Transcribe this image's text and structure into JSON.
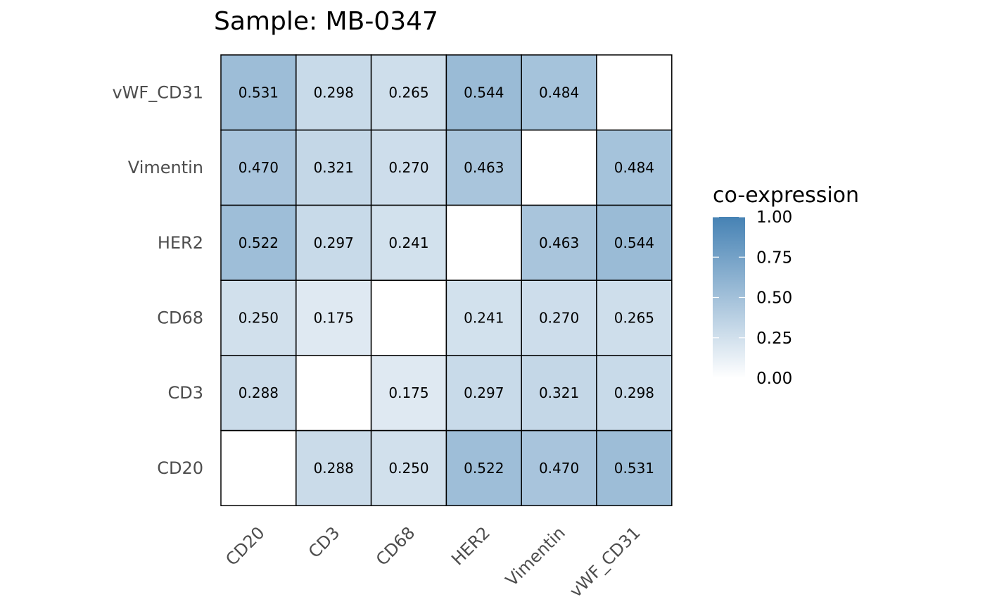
{
  "chart_data": {
    "type": "heatmap",
    "title": "Sample: MB-0347",
    "x_categories": [
      "CD20",
      "CD3",
      "CD68",
      "HER2",
      "Vimentin",
      "vWF_CD31"
    ],
    "y_categories": [
      "CD20",
      "CD3",
      "CD68",
      "HER2",
      "Vimentin",
      "vWF_CD31"
    ],
    "values": [
      [
        null,
        0.288,
        0.25,
        0.522,
        0.47,
        0.531
      ],
      [
        0.288,
        null,
        0.175,
        0.297,
        0.321,
        0.298
      ],
      [
        0.25,
        0.175,
        null,
        0.241,
        0.27,
        0.265
      ],
      [
        0.522,
        0.297,
        0.241,
        null,
        0.463,
        0.544
      ],
      [
        0.47,
        0.321,
        0.27,
        0.463,
        null,
        0.484
      ],
      [
        0.531,
        0.298,
        0.265,
        0.544,
        0.484,
        null
      ]
    ],
    "value_format": "3 decimals",
    "color_scale": {
      "min": 0,
      "max": 1,
      "low_color": "#ffffff",
      "high_color": "#4682b4",
      "missing_color": "#ffffff"
    },
    "legend": {
      "title": "co-expression",
      "placement": "right",
      "breaks": [
        1.0,
        0.75,
        0.5,
        0.25,
        0.0
      ],
      "break_labels": [
        "1.00",
        "0.75",
        "0.50",
        "0.25",
        "0.00"
      ]
    },
    "xlabel": "",
    "ylabel": "",
    "grid": false
  },
  "colors": {
    "cell_border": "#000000",
    "tick_text": "#4d4d4d"
  }
}
